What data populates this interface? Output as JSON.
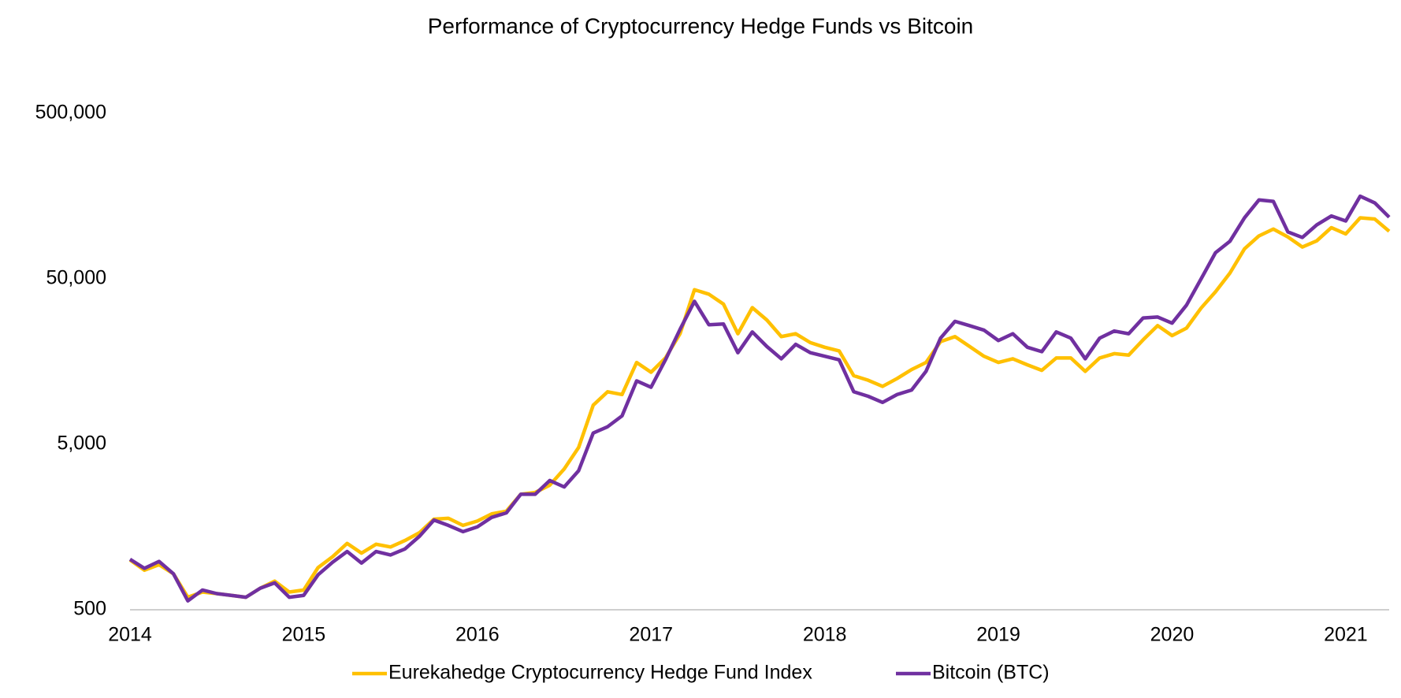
{
  "chart_data": {
    "type": "line",
    "title": "Performance of Cryptocurrency Hedge Funds vs Bitcoin",
    "x": [
      2014,
      2014.083,
      2014.167,
      2014.25,
      2014.333,
      2014.417,
      2014.5,
      2014.583,
      2014.667,
      2014.75,
      2014.833,
      2014.917,
      2015,
      2015.083,
      2015.167,
      2015.25,
      2015.333,
      2015.417,
      2015.5,
      2015.583,
      2015.667,
      2015.75,
      2015.833,
      2015.917,
      2016,
      2016.083,
      2016.167,
      2016.25,
      2016.333,
      2016.417,
      2016.5,
      2016.583,
      2016.667,
      2016.75,
      2016.833,
      2016.917,
      2017,
      2017.083,
      2017.167,
      2017.25,
      2017.333,
      2017.417,
      2017.5,
      2017.583,
      2017.667,
      2017.75,
      2017.833,
      2017.917,
      2018,
      2018.083,
      2018.167,
      2018.25,
      2018.333,
      2018.417,
      2018.5,
      2018.583,
      2018.667,
      2018.75,
      2018.833,
      2018.917,
      2019,
      2019.083,
      2019.167,
      2019.25,
      2019.333,
      2019.417,
      2019.5,
      2019.583,
      2019.667,
      2019.75,
      2019.833,
      2019.917,
      2020,
      2020.083,
      2020.167,
      2020.25,
      2020.333,
      2020.417,
      2020.5,
      2020.583,
      2020.667,
      2020.75,
      2020.833,
      2020.917,
      2021,
      2021.083,
      2021.167,
      2021.25
    ],
    "series": [
      {
        "name": "Eurekahedge Cryptocurrency Hedge Fund Index",
        "color": "#ffc000",
        "values": [
          1000,
          867,
          937,
          825,
          595,
          640,
          626,
          611,
          595,
          675,
          745,
          640,
          658,
          900,
          1047,
          1259,
          1100,
          1245,
          1198,
          1311,
          1462,
          1765,
          1786,
          1618,
          1719,
          1900,
          1972,
          2497,
          2560,
          2833,
          3550,
          4787,
          8620,
          10390,
          10000,
          15620,
          13640,
          16630,
          23300,
          43000,
          40400,
          35200,
          23300,
          33500,
          28200,
          22400,
          23300,
          20600,
          19300,
          18350,
          13000,
          12200,
          11200,
          12500,
          14150,
          15620,
          20880,
          22400,
          19550,
          17030,
          15620,
          16440,
          15110,
          14000,
          16630,
          16630,
          13800,
          16630,
          17660,
          17300,
          21400,
          26100,
          22700,
          25200,
          33300,
          41800,
          54200,
          76000,
          90900,
          100000,
          89600,
          77900,
          84900,
          102000,
          93500,
          117000,
          115000,
          97000
        ]
      },
      {
        "name": "Bitcoin (BTC)",
        "color": "#7030a0",
        "values": [
          1010,
          890,
          980,
          825,
          566,
          658,
          626,
          611,
          595,
          675,
          727,
          595,
          611,
          814,
          970,
          1125,
          958,
          1125,
          1072,
          1166,
          1392,
          1742,
          1618,
          1483,
          1585,
          1810,
          1926,
          2497,
          2497,
          3022,
          2762,
          3463,
          5850,
          6390,
          7430,
          12090,
          11070,
          16210,
          24770,
          36600,
          26400,
          26700,
          17900,
          23900,
          19500,
          16440,
          20100,
          17900,
          17030,
          16210,
          10400,
          9760,
          8960,
          10000,
          10640,
          13800,
          21920,
          27700,
          26100,
          24500,
          21200,
          23300,
          19300,
          18160,
          23900,
          21920,
          16440,
          21920,
          24200,
          23300,
          29000,
          29400,
          27000,
          34700,
          50000,
          72000,
          84400,
          117000,
          150000,
          147000,
          96100,
          89000,
          106000,
          120000,
          112000,
          158000,
          144000,
          118000
        ]
      }
    ],
    "xlim": [
      2014,
      2021.25
    ],
    "xticks": [
      2014,
      2015,
      2016,
      2017,
      2018,
      2019,
      2020,
      2021
    ],
    "ylim": [
      500,
      500000
    ],
    "yticks": [
      500,
      {
        "value": 5000,
        "label": "5,000"
      },
      {
        "value": 50000,
        "label": "50,000"
      },
      {
        "value": 500000,
        "label": "500,000"
      }
    ],
    "ylog": true,
    "grid": false,
    "legend": "bottom"
  }
}
